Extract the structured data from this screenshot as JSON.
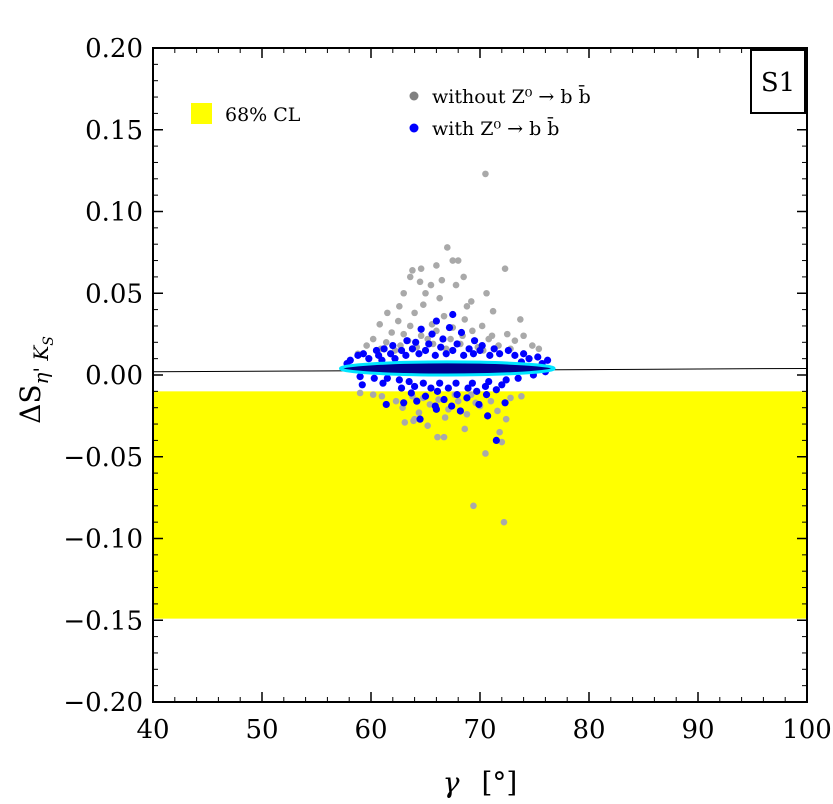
{
  "chart_data": {
    "type": "scatter",
    "panel_label": "S1",
    "xlabel_symbol": "γ",
    "xlabel_unit": "[°]",
    "ylabel_main": "ΔS",
    "ylabel_sub": "η' K",
    "ylabel_subsub": "S",
    "xlim": [
      40,
      100
    ],
    "ylim": [
      -0.2,
      0.2
    ],
    "x_ticks": [
      40,
      50,
      60,
      70,
      80,
      90,
      100
    ],
    "x_tick_labels": [
      "40",
      "50",
      "60",
      "70",
      "80",
      "90",
      "100"
    ],
    "y_ticks": [
      -0.2,
      -0.15,
      -0.1,
      -0.05,
      0.0,
      0.05,
      0.1,
      0.15,
      0.2
    ],
    "y_tick_labels": [
      "−0.20",
      "−0.15",
      "−0.10",
      "−0.05",
      "0.00",
      "0.05",
      "0.10",
      "0.15",
      "0.20"
    ],
    "band": {
      "label": "68% CL",
      "y_low": -0.149,
      "y_high": -0.01,
      "color": "#ffff00"
    },
    "sm_line": {
      "x": [
        40,
        100
      ],
      "y": [
        0.002,
        0.004
      ],
      "color": "#000000"
    },
    "ellipse": {
      "x_center": 67,
      "y_center": 0.004,
      "x_halfwidth": 9.8,
      "y_halfheight": 0.004,
      "fill": "#00008b",
      "stroke": "#00e5ff"
    },
    "legend": [
      {
        "label": "without Z⁰ → b b̄",
        "color": "#808080"
      },
      {
        "label": "with Z⁰ → b b̄",
        "color": "#0000ff"
      }
    ],
    "series": [
      {
        "name": "without Z⁰ → b b̄",
        "color": "#a9a9a9",
        "points": [
          [
            70.5,
            0.123
          ],
          [
            67.0,
            0.078
          ],
          [
            67.5,
            0.07
          ],
          [
            68.0,
            0.07
          ],
          [
            66.0,
            0.067
          ],
          [
            72.3,
            0.065
          ],
          [
            63.8,
            0.064
          ],
          [
            64.6,
            0.065
          ],
          [
            63.6,
            0.06
          ],
          [
            68.5,
            0.06
          ],
          [
            66.5,
            0.058
          ],
          [
            64.5,
            0.057
          ],
          [
            65.5,
            0.055
          ],
          [
            67.8,
            0.055
          ],
          [
            63.0,
            0.05
          ],
          [
            65.0,
            0.05
          ],
          [
            70.6,
            0.05
          ],
          [
            66.3,
            0.047
          ],
          [
            69.2,
            0.045
          ],
          [
            64.8,
            0.043
          ],
          [
            68.8,
            0.042
          ],
          [
            62.6,
            0.042
          ],
          [
            71.2,
            0.039
          ],
          [
            61.5,
            0.038
          ],
          [
            64.0,
            0.038
          ],
          [
            66.7,
            0.036
          ],
          [
            68.6,
            0.034
          ],
          [
            62.5,
            0.033
          ],
          [
            73.7,
            0.034
          ],
          [
            60.8,
            0.031
          ],
          [
            63.6,
            0.03
          ],
          [
            65.6,
            0.031
          ],
          [
            70.2,
            0.03
          ],
          [
            61.9,
            0.026
          ],
          [
            67.5,
            0.029
          ],
          [
            63.0,
            0.025
          ],
          [
            64.6,
            0.024
          ],
          [
            68.4,
            0.024
          ],
          [
            71.1,
            0.024
          ],
          [
            74.0,
            0.024
          ],
          [
            60.2,
            0.022
          ],
          [
            65.2,
            0.022
          ],
          [
            66.0,
            0.027
          ],
          [
            69.3,
            0.027
          ],
          [
            72.5,
            0.025
          ],
          [
            61.4,
            0.02
          ],
          [
            63.4,
            0.021
          ],
          [
            67.3,
            0.022
          ],
          [
            70.8,
            0.022
          ],
          [
            73.2,
            0.021
          ],
          [
            59.6,
            0.018
          ],
          [
            62.7,
            0.018
          ],
          [
            65.7,
            0.019
          ],
          [
            68.2,
            0.019
          ],
          [
            71.7,
            0.018
          ],
          [
            74.8,
            0.018
          ],
          [
            60.9,
            0.016
          ],
          [
            64.2,
            0.017
          ],
          [
            66.9,
            0.016
          ],
          [
            69.8,
            0.017
          ],
          [
            72.8,
            0.016
          ],
          [
            75.4,
            0.016
          ],
          [
            62.2,
            0.015
          ],
          [
            70.3,
            0.015
          ],
          [
            58.8,
            0.013
          ],
          [
            63.8,
            -0.013
          ],
          [
            64.8,
            -0.014
          ],
          [
            66.2,
            -0.015
          ],
          [
            68.0,
            -0.016
          ],
          [
            69.6,
            -0.017
          ],
          [
            71.0,
            -0.016
          ],
          [
            72.8,
            -0.014
          ],
          [
            62.3,
            -0.016
          ],
          [
            65.4,
            -0.018
          ],
          [
            67.1,
            -0.021
          ],
          [
            70.0,
            -0.019
          ],
          [
            71.6,
            -0.022
          ],
          [
            62.9,
            -0.02
          ],
          [
            64.4,
            -0.023
          ],
          [
            66.8,
            -0.026
          ],
          [
            68.8,
            -0.024
          ],
          [
            63.1,
            -0.029
          ],
          [
            64.0,
            -0.027
          ],
          [
            65.2,
            -0.031
          ],
          [
            68.6,
            -0.033
          ],
          [
            72.4,
            -0.027
          ],
          [
            61.0,
            -0.013
          ],
          [
            67.7,
            -0.012
          ],
          [
            66.7,
            -0.038
          ],
          [
            71.8,
            -0.035
          ],
          [
            70.5,
            -0.048
          ],
          [
            72.0,
            -0.041
          ],
          [
            69.4,
            -0.08
          ],
          [
            72.2,
            -0.09
          ],
          [
            66.1,
            -0.038
          ],
          [
            60.2,
            -0.012
          ],
          [
            73.8,
            -0.013
          ],
          [
            59.0,
            -0.011
          ],
          [
            69.2,
            -0.012
          ],
          [
            63.9,
            -0.028
          ]
        ]
      },
      {
        "name": "with Z⁰ → b b̄",
        "color": "#0000ff",
        "points": [
          [
            66.0,
            0.033
          ],
          [
            67.5,
            0.037
          ],
          [
            64.6,
            0.028
          ],
          [
            67.2,
            0.029
          ],
          [
            65.6,
            0.025
          ],
          [
            68.3,
            0.026
          ],
          [
            63.3,
            0.021
          ],
          [
            66.6,
            0.022
          ],
          [
            69.5,
            0.021
          ],
          [
            64.1,
            0.02
          ],
          [
            62.0,
            0.018
          ],
          [
            65.3,
            0.019
          ],
          [
            67.9,
            0.019
          ],
          [
            70.2,
            0.018
          ],
          [
            61.2,
            0.016
          ],
          [
            63.8,
            0.016
          ],
          [
            66.4,
            0.017
          ],
          [
            69.0,
            0.016
          ],
          [
            71.3,
            0.016
          ],
          [
            60.5,
            0.015
          ],
          [
            62.8,
            0.015
          ],
          [
            65.0,
            0.015
          ],
          [
            67.5,
            0.015
          ],
          [
            70.0,
            0.015
          ],
          [
            72.6,
            0.015
          ],
          [
            59.3,
            0.013
          ],
          [
            61.8,
            0.013
          ],
          [
            64.4,
            0.013
          ],
          [
            66.9,
            0.013
          ],
          [
            69.4,
            0.013
          ],
          [
            71.8,
            0.013
          ],
          [
            74.0,
            0.013
          ],
          [
            58.8,
            0.012
          ],
          [
            60.7,
            0.012
          ],
          [
            63.2,
            0.012
          ],
          [
            65.9,
            0.012
          ],
          [
            68.5,
            0.012
          ],
          [
            70.9,
            0.012
          ],
          [
            73.2,
            0.012
          ],
          [
            75.3,
            0.011
          ],
          [
            59.8,
            0.01
          ],
          [
            62.2,
            0.01
          ],
          [
            74.5,
            0.01
          ],
          [
            76.2,
            0.009
          ],
          [
            58.1,
            0.009
          ],
          [
            61.0,
            0.009
          ],
          [
            73.8,
            0.008
          ],
          [
            75.7,
            0.007
          ],
          [
            57.8,
            0.007
          ],
          [
            59.0,
            -0.001
          ],
          [
            60.3,
            -0.002
          ],
          [
            61.5,
            -0.002
          ],
          [
            74.9,
            0.0
          ],
          [
            76.0,
            0.002
          ],
          [
            62.6,
            -0.003
          ],
          [
            73.5,
            -0.002
          ],
          [
            63.5,
            -0.004
          ],
          [
            64.8,
            -0.005
          ],
          [
            66.3,
            -0.005
          ],
          [
            67.8,
            -0.005
          ],
          [
            69.3,
            -0.005
          ],
          [
            70.8,
            -0.004
          ],
          [
            72.4,
            -0.003
          ],
          [
            61.1,
            -0.005
          ],
          [
            64.0,
            -0.007
          ],
          [
            65.5,
            -0.008
          ],
          [
            67.1,
            -0.008
          ],
          [
            68.9,
            -0.008
          ],
          [
            70.5,
            -0.007
          ],
          [
            72.0,
            -0.006
          ],
          [
            62.8,
            -0.008
          ],
          [
            66.1,
            -0.01
          ],
          [
            69.7,
            -0.01
          ],
          [
            71.5,
            -0.009
          ],
          [
            63.7,
            -0.011
          ],
          [
            67.9,
            -0.012
          ],
          [
            65.0,
            -0.013
          ],
          [
            70.6,
            -0.012
          ],
          [
            66.7,
            -0.015
          ],
          [
            68.8,
            -0.014
          ],
          [
            64.2,
            -0.016
          ],
          [
            69.9,
            -0.018
          ],
          [
            67.4,
            -0.019
          ],
          [
            65.9,
            -0.019
          ],
          [
            61.4,
            -0.018
          ],
          [
            63.0,
            -0.017
          ],
          [
            72.3,
            -0.017
          ],
          [
            70.7,
            -0.025
          ],
          [
            64.5,
            -0.027
          ],
          [
            71.5,
            -0.04
          ],
          [
            68.2,
            -0.022
          ],
          [
            59.2,
            -0.006
          ],
          [
            60.0,
            0.003
          ],
          [
            73.0,
            0.004
          ],
          [
            66.0,
            -0.021
          ]
        ]
      }
    ]
  }
}
